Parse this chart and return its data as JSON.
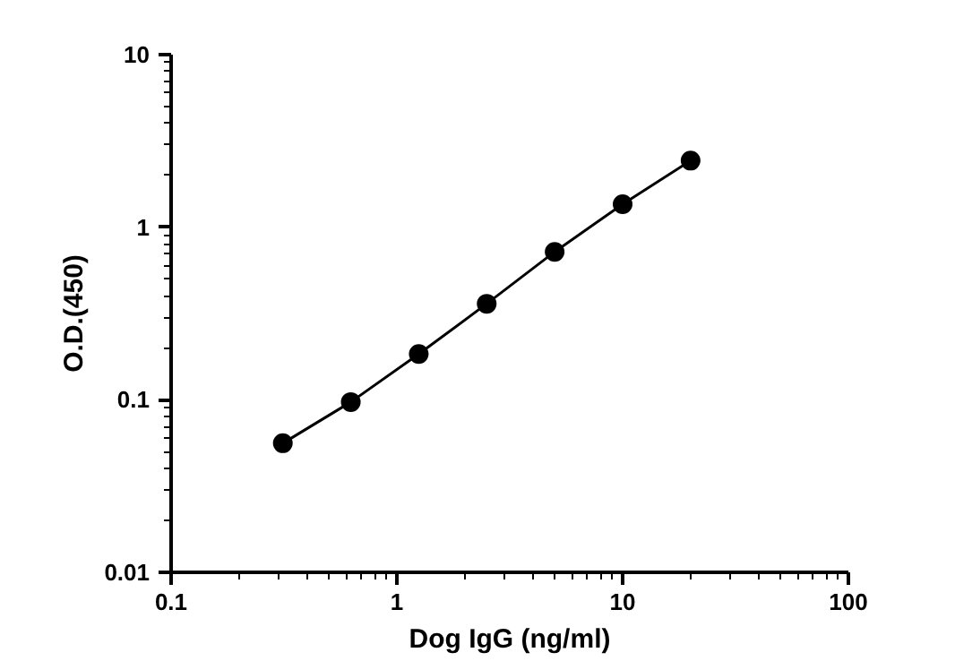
{
  "chart_data": {
    "type": "line",
    "xlabel": "Dog IgG (ng/ml)",
    "ylabel": "O.D.(450)",
    "log": "xy",
    "marker": "circle",
    "line_style": "solid",
    "grid": false,
    "xlim": [
      0.1,
      100
    ],
    "xticks": [
      0.1,
      1,
      10,
      100
    ],
    "ylim": [
      0.01,
      10
    ],
    "yticks": [
      0.01,
      0.1,
      1,
      10
    ],
    "series": [
      {
        "color": "#000000",
        "x": [
          0.3125,
          0.625,
          1.25,
          2.5,
          5,
          10,
          20
        ],
        "values": [
          0.056,
          0.097,
          0.184,
          0.36,
          0.72,
          1.36,
          2.43
        ]
      }
    ]
  }
}
